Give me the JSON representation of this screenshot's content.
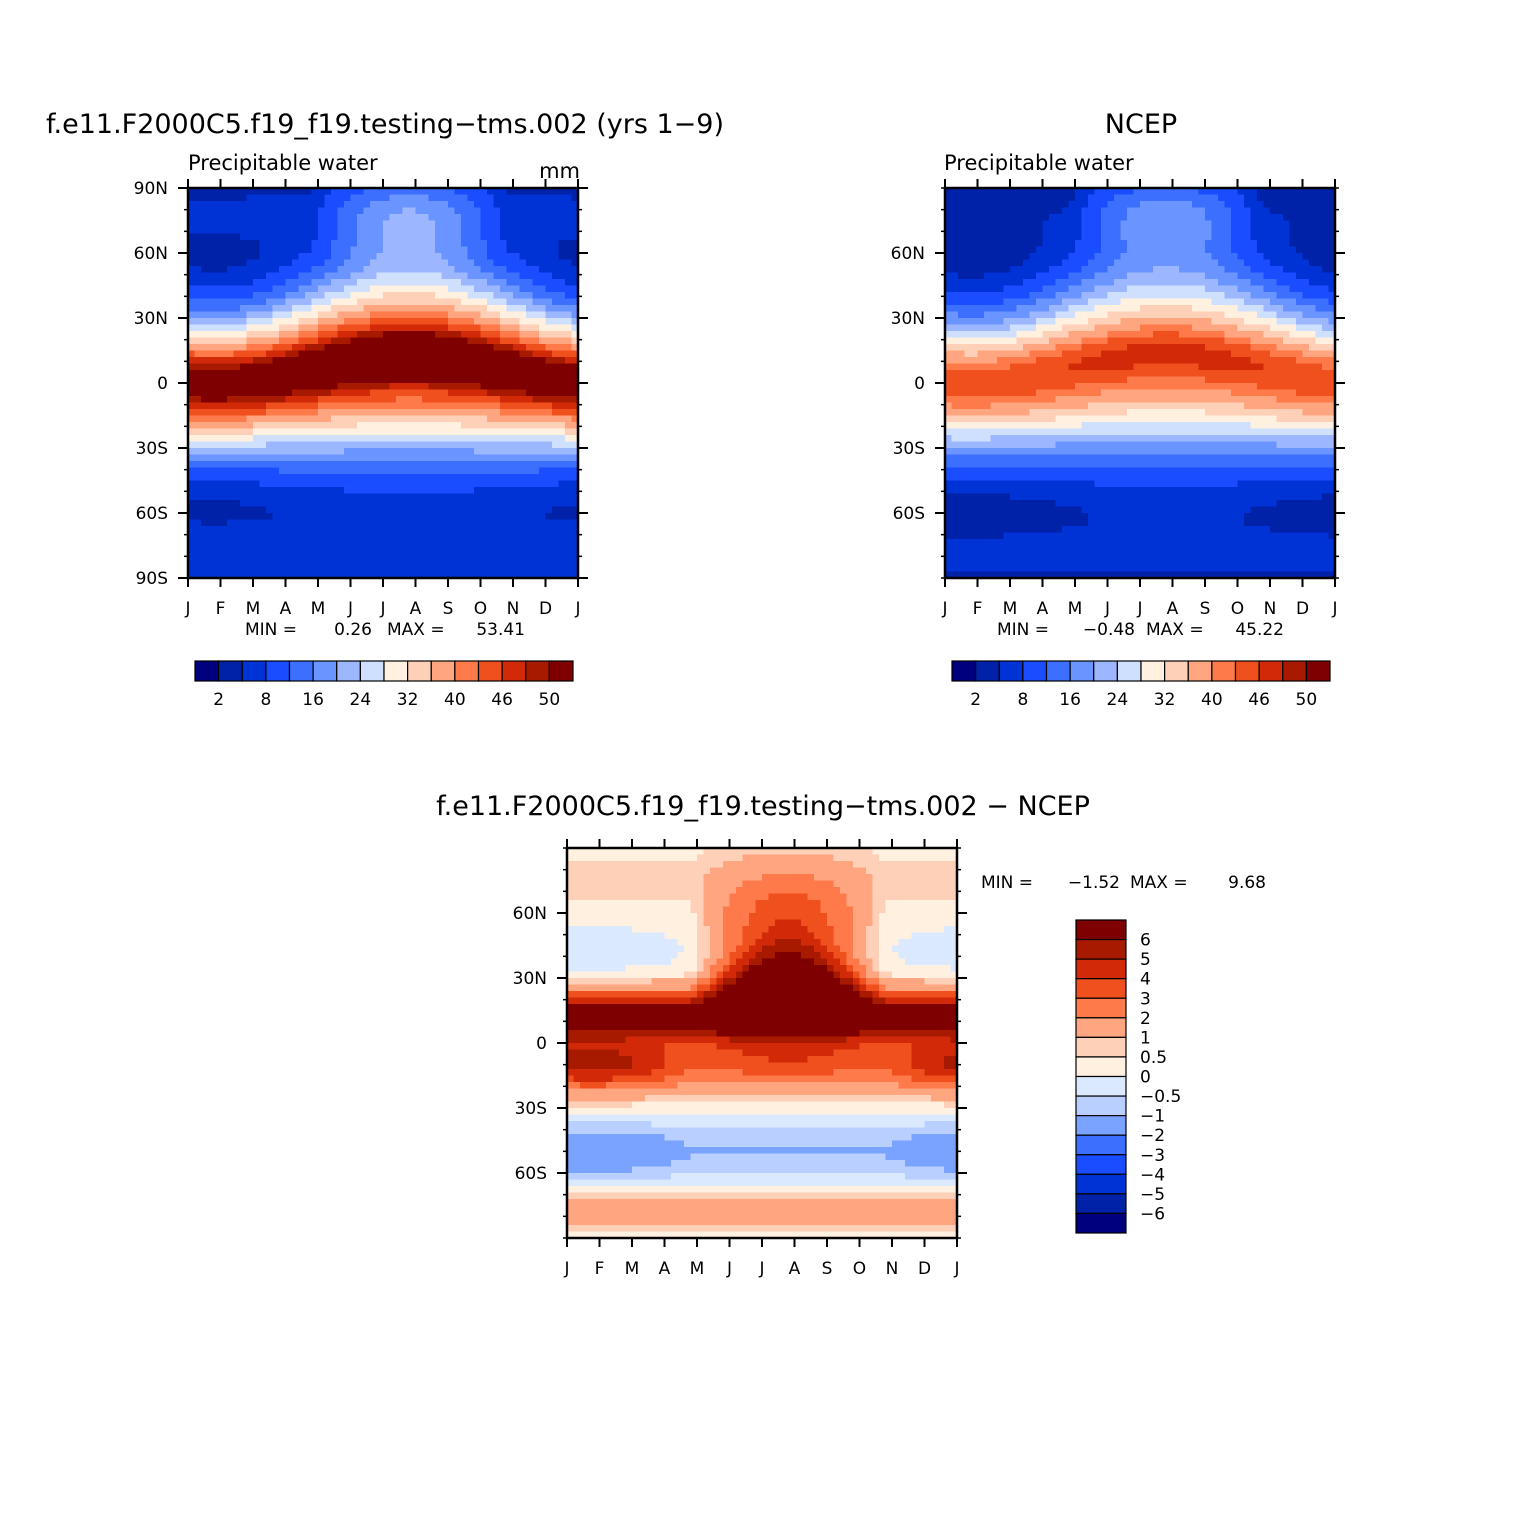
{
  "colors": {
    "abs_levels": [
      "#00007f",
      "#0022a8",
      "#0033d6",
      "#1a4dff",
      "#3d6fff",
      "#6a94ff",
      "#9db7ff",
      "#cfe0ff",
      "#fff0e0",
      "#ffd0b8",
      "#ffa680",
      "#ff7a4a",
      "#f0501e",
      "#d22a08",
      "#a81a00",
      "#7f0000"
    ],
    "diff_levels": [
      "#00007f",
      "#0022a8",
      "#0033d6",
      "#1a4dff",
      "#3d6fff",
      "#7aa3ff",
      "#b8cfff",
      "#dbe9ff",
      "#fff0e0",
      "#ffd0b8",
      "#ffa680",
      "#ff7a4a",
      "#f0501e",
      "#d22a08",
      "#a81a00",
      "#7f0000"
    ]
  },
  "chart_data": [
    {
      "id": "model",
      "type": "heatmap",
      "title": "f.e11.F2000C5.f19_f19.testing−tms.002 (yrs 1−9)",
      "subtitle": "Precipitable water",
      "units": "mm",
      "months": [
        "J",
        "F",
        "M",
        "A",
        "M",
        "J",
        "J",
        "A",
        "S",
        "O",
        "N",
        "D",
        "J"
      ],
      "lat_labels": [
        "90N",
        "60N",
        "30N",
        "0",
        "30S",
        "60S",
        "90S"
      ],
      "lat_range": [
        -90,
        90
      ],
      "min": 0.26,
      "max": 53.41,
      "min_label": "MIN =",
      "min_text": "0.26",
      "max_label": "MAX =",
      "max_text": "53.41",
      "contour_levels": [
        2,
        5,
        8,
        12,
        16,
        20,
        24,
        28,
        32,
        36,
        40,
        43,
        46,
        48,
        50
      ],
      "colorbar_labels": [
        "2",
        "8",
        "16",
        "24",
        "32",
        "40",
        "46",
        "50"
      ],
      "equator_peak": 53,
      "north_pole_winter": 4,
      "south_pole": 1
    },
    {
      "id": "ncep",
      "type": "heatmap",
      "title": "NCEP",
      "subtitle": "Precipitable water",
      "months": [
        "J",
        "F",
        "M",
        "A",
        "M",
        "J",
        "J",
        "A",
        "S",
        "O",
        "N",
        "D",
        "J"
      ],
      "lat_labels": [
        "60N",
        "30N",
        "0",
        "30S",
        "60S"
      ],
      "lat_range": [
        -90,
        90
      ],
      "min": -0.48,
      "max": 45.22,
      "min_label": "MIN =",
      "min_text": "−0.48",
      "max_label": "MAX =",
      "max_text": "45.22",
      "contour_levels": [
        2,
        5,
        8,
        12,
        16,
        20,
        24,
        28,
        32,
        36,
        40,
        43,
        46,
        48,
        50
      ],
      "colorbar_labels": [
        "2",
        "8",
        "16",
        "24",
        "32",
        "40",
        "46",
        "50"
      ],
      "equator_peak": 45,
      "north_pole_winter": 3,
      "south_pole": 0
    },
    {
      "id": "diff",
      "type": "heatmap",
      "title": "f.e11.F2000C5.f19_f19.testing−tms.002 − NCEP",
      "months": [
        "J",
        "F",
        "M",
        "A",
        "M",
        "J",
        "J",
        "A",
        "S",
        "O",
        "N",
        "D",
        "J"
      ],
      "lat_labels": [
        "60N",
        "30N",
        "0",
        "30S",
        "60S"
      ],
      "lat_range": [
        -90,
        90
      ],
      "min": -1.52,
      "max": 9.68,
      "min_label": "MIN =",
      "min_text": "−1.52",
      "max_label": "MAX =",
      "max_text": "9.68",
      "contour_levels": [
        -6,
        -5,
        -4,
        -3,
        -2,
        -1,
        -0.5,
        0,
        0.5,
        1,
        2,
        3,
        4,
        5,
        6
      ],
      "colorbar_labels_top_to_bottom": [
        "6",
        "5",
        "4",
        "3",
        "2",
        "1",
        "0.5",
        "0",
        "−0.5",
        "−1",
        "−2",
        "−3",
        "−4",
        "−5",
        "−6"
      ]
    }
  ]
}
